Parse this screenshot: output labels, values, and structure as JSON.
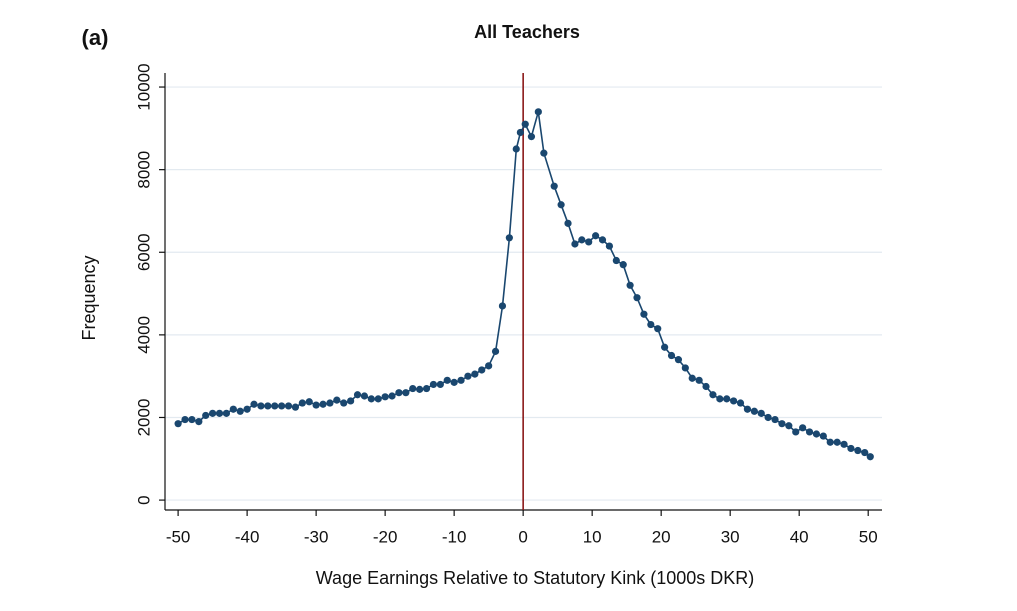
{
  "chart_data": {
    "type": "line",
    "panel_label": "(a)",
    "title": "All Teachers",
    "xlabel": "Wage Earnings Relative to Statutory Kink (1000s DKR)",
    "ylabel": "Frequency",
    "x": [
      -50,
      -49,
      -48,
      -47,
      -46,
      -45,
      -44,
      -43,
      -42,
      -41,
      -40,
      -39,
      -38,
      -37,
      -36,
      -35,
      -34,
      -33,
      -32,
      -31,
      -30,
      -29,
      -28,
      -27,
      -26,
      -25,
      -24,
      -23,
      -22,
      -21,
      -20,
      -19,
      -18,
      -17,
      -16,
      -15,
      -14,
      -13,
      -12,
      -11,
      -10,
      -9,
      -8,
      -7,
      -6,
      -5,
      -4,
      -3,
      -2,
      -1,
      -0.4,
      0.3,
      1.2,
      2.2,
      3,
      4.5,
      5.5,
      6.5,
      7.5,
      8.5,
      9.5,
      10.5,
      11.5,
      12.5,
      13.5,
      14.5,
      15.5,
      16.5,
      17.5,
      18.5,
      19.5,
      20.5,
      21.5,
      22.5,
      23.5,
      24.5,
      25.5,
      26.5,
      27.5,
      28.5,
      29.5,
      30.5,
      31.5,
      32.5,
      33.5,
      34.5,
      35.5,
      36.5,
      37.5,
      38.5,
      39.5,
      40.5,
      41.5,
      42.5,
      43.5,
      44.5,
      45.5,
      46.5,
      47.5,
      48.5,
      49.5,
      50.3
    ],
    "values": [
      1850,
      1950,
      1950,
      1900,
      2050,
      2100,
      2100,
      2100,
      2200,
      2150,
      2200,
      2320,
      2280,
      2280,
      2280,
      2280,
      2280,
      2250,
      2350,
      2380,
      2300,
      2320,
      2350,
      2420,
      2350,
      2400,
      2550,
      2520,
      2450,
      2450,
      2500,
      2520,
      2600,
      2600,
      2700,
      2680,
      2700,
      2800,
      2800,
      2900,
      2850,
      2900,
      3000,
      3050,
      3150,
      3250,
      3600,
      4700,
      6350,
      8500,
      8900,
      9100,
      8800,
      9400,
      8400,
      7600,
      7150,
      6700,
      6200,
      6300,
      6250,
      6400,
      6300,
      6150,
      5800,
      5700,
      5200,
      4900,
      4500,
      4250,
      4150,
      3700,
      3500,
      3400,
      3200,
      2950,
      2900,
      2750,
      2550,
      2450,
      2450,
      2400,
      2350,
      2200,
      2150,
      2100,
      2000,
      1950,
      1850,
      1800,
      1650,
      1750,
      1650,
      1600,
      1550,
      1400,
      1400,
      1350,
      1250,
      1200,
      1150,
      1050
    ],
    "color": "#1a476f",
    "vline": 0,
    "vline_color": "#8b1a1a",
    "xlim": [
      -51.9,
      52
    ],
    "ylim": [
      -240,
      10340
    ],
    "xticks": [
      -50,
      -40,
      -30,
      -20,
      -10,
      0,
      10,
      20,
      30,
      40,
      50
    ],
    "yticks": [
      0,
      2000,
      4000,
      6000,
      8000,
      10000
    ],
    "grid": true
  }
}
